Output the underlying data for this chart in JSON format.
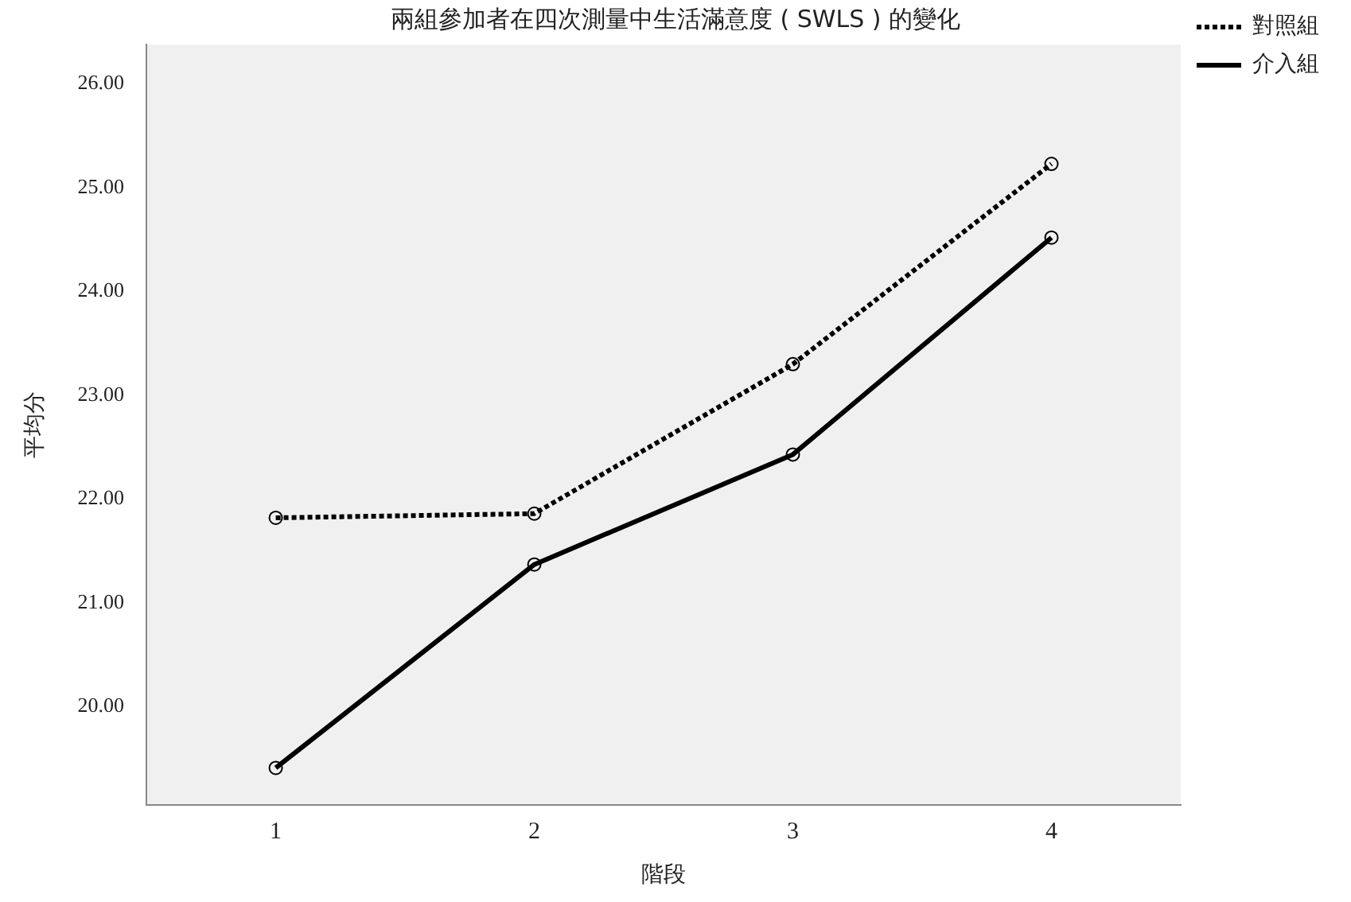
{
  "chart_data": {
    "type": "line",
    "title": "兩組參加者在四次測量中生活滿意度 ( SWLS ) 的變化",
    "xlabel": "階段",
    "ylabel": "平均分",
    "categories": [
      "1",
      "2",
      "3",
      "4"
    ],
    "series": [
      {
        "name": "對照組",
        "color": "#000000",
        "line_style": "dotted",
        "values": [
          21.82,
          21.86,
          23.3,
          25.23
        ]
      },
      {
        "name": "介入組",
        "color": "#000000",
        "line_style": "solid",
        "values": [
          19.41,
          21.37,
          22.43,
          24.52
        ]
      }
    ],
    "ylim": [
      19.05,
      26.38
    ],
    "yticks": [
      {
        "value": 20,
        "label": "20.00"
      },
      {
        "value": 21,
        "label": "21.00"
      },
      {
        "value": 22,
        "label": "22.00"
      },
      {
        "value": 23,
        "label": "23.00"
      },
      {
        "value": 24,
        "label": "24.00"
      },
      {
        "value": 25,
        "label": "25.00"
      },
      {
        "value": 26,
        "label": "26.00"
      }
    ],
    "grid": false,
    "legend": "top right",
    "marker": "circle"
  }
}
